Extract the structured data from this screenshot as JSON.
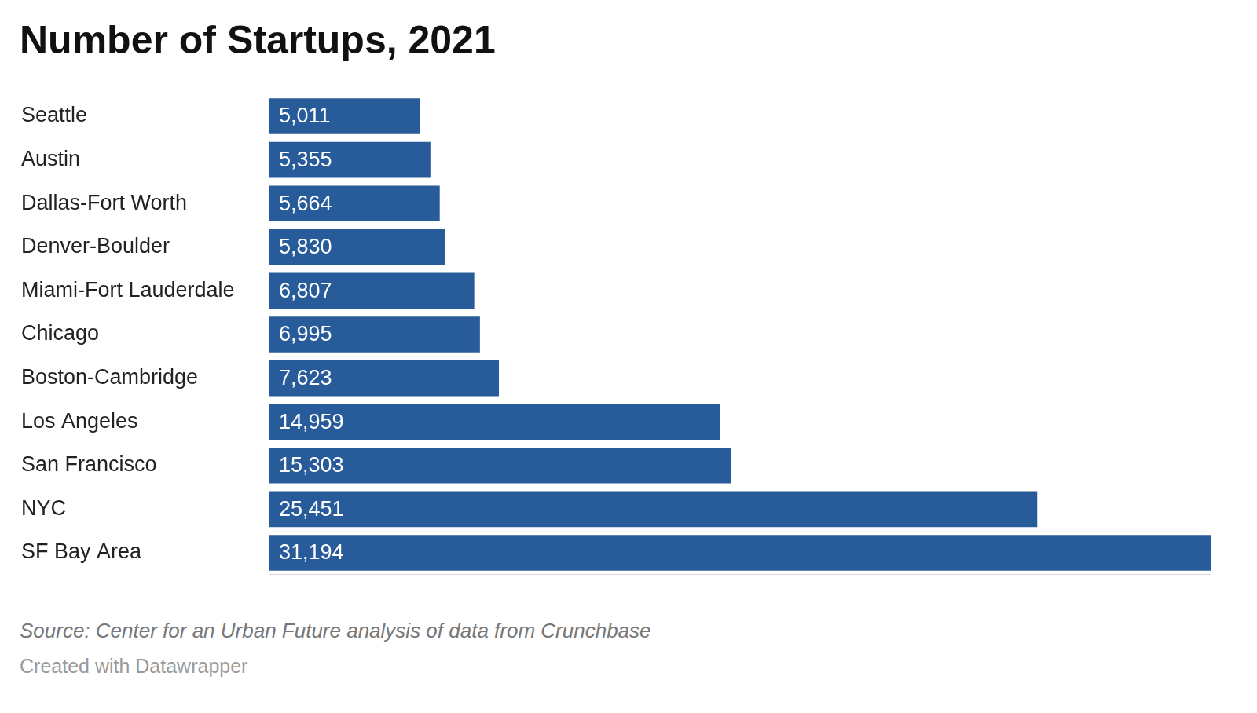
{
  "chart_data": {
    "type": "bar",
    "orientation": "horizontal",
    "title": "Number of Startups, 2021",
    "categories": [
      "Seattle",
      "Austin",
      "Dallas-Fort Worth",
      "Denver-Boulder",
      "Miami-Fort Lauderdale",
      "Chicago",
      "Boston-Cambridge",
      "Los Angeles",
      "San Francisco",
      "NYC",
      "SF Bay Area"
    ],
    "values": [
      5011,
      5355,
      5664,
      5830,
      6807,
      6995,
      7623,
      14959,
      15303,
      25451,
      31194
    ],
    "value_labels": [
      "5,011",
      "5,355",
      "5,664",
      "5,830",
      "6,807",
      "6,995",
      "7,623",
      "14,959",
      "15,303",
      "25,451",
      "31,194"
    ],
    "color": "#285b9a",
    "xlim": [
      0,
      31194
    ],
    "xticks": [],
    "grid": false,
    "data_labels": true,
    "tick_labels": "y",
    "source": "Source: Center for an Urban Future analysis of data from Crunchbase",
    "credit": "Created with Datawrapper"
  }
}
